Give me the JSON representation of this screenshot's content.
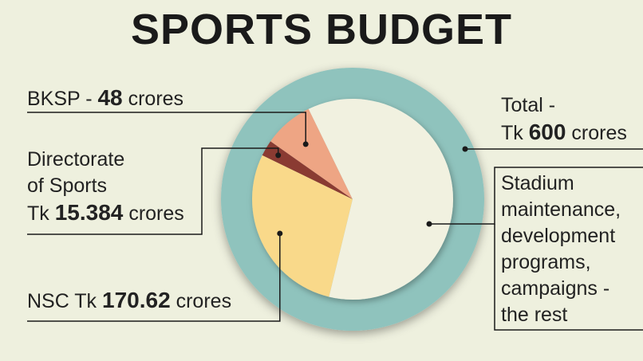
{
  "chart_data": {
    "type": "pie",
    "title": "SPORTS BUDGET",
    "total": {
      "prefix_line1": "Total -",
      "prefix_line2": "Tk",
      "value": "600",
      "suffix": "crores",
      "amount": 600
    },
    "slices": [
      {
        "key": "bksp",
        "label_prefix": "BKSP -",
        "value_text": "48",
        "label_suffix": "crores",
        "value": 48,
        "color": "#eea584"
      },
      {
        "key": "dos",
        "label_line1": "Directorate",
        "label_line2": "of Sports",
        "label_prefix": "Tk",
        "value_text": "15.384",
        "label_suffix": "crores",
        "value": 15.384,
        "color": "#8a3a33"
      },
      {
        "key": "nsc",
        "label_prefix": "NSC Tk",
        "value_text": "170.62",
        "label_suffix": "crores",
        "value": 170.62,
        "color": "#f9d98a"
      },
      {
        "key": "rest",
        "label_lines": [
          "Stadium",
          "maintenance,",
          "development",
          "programs,",
          "campaigns -",
          "the rest"
        ],
        "value": 365.996,
        "color": "#f1f1e0"
      }
    ],
    "ring_color": "#8fc3bd",
    "leader_color": "#1a1a1a"
  }
}
